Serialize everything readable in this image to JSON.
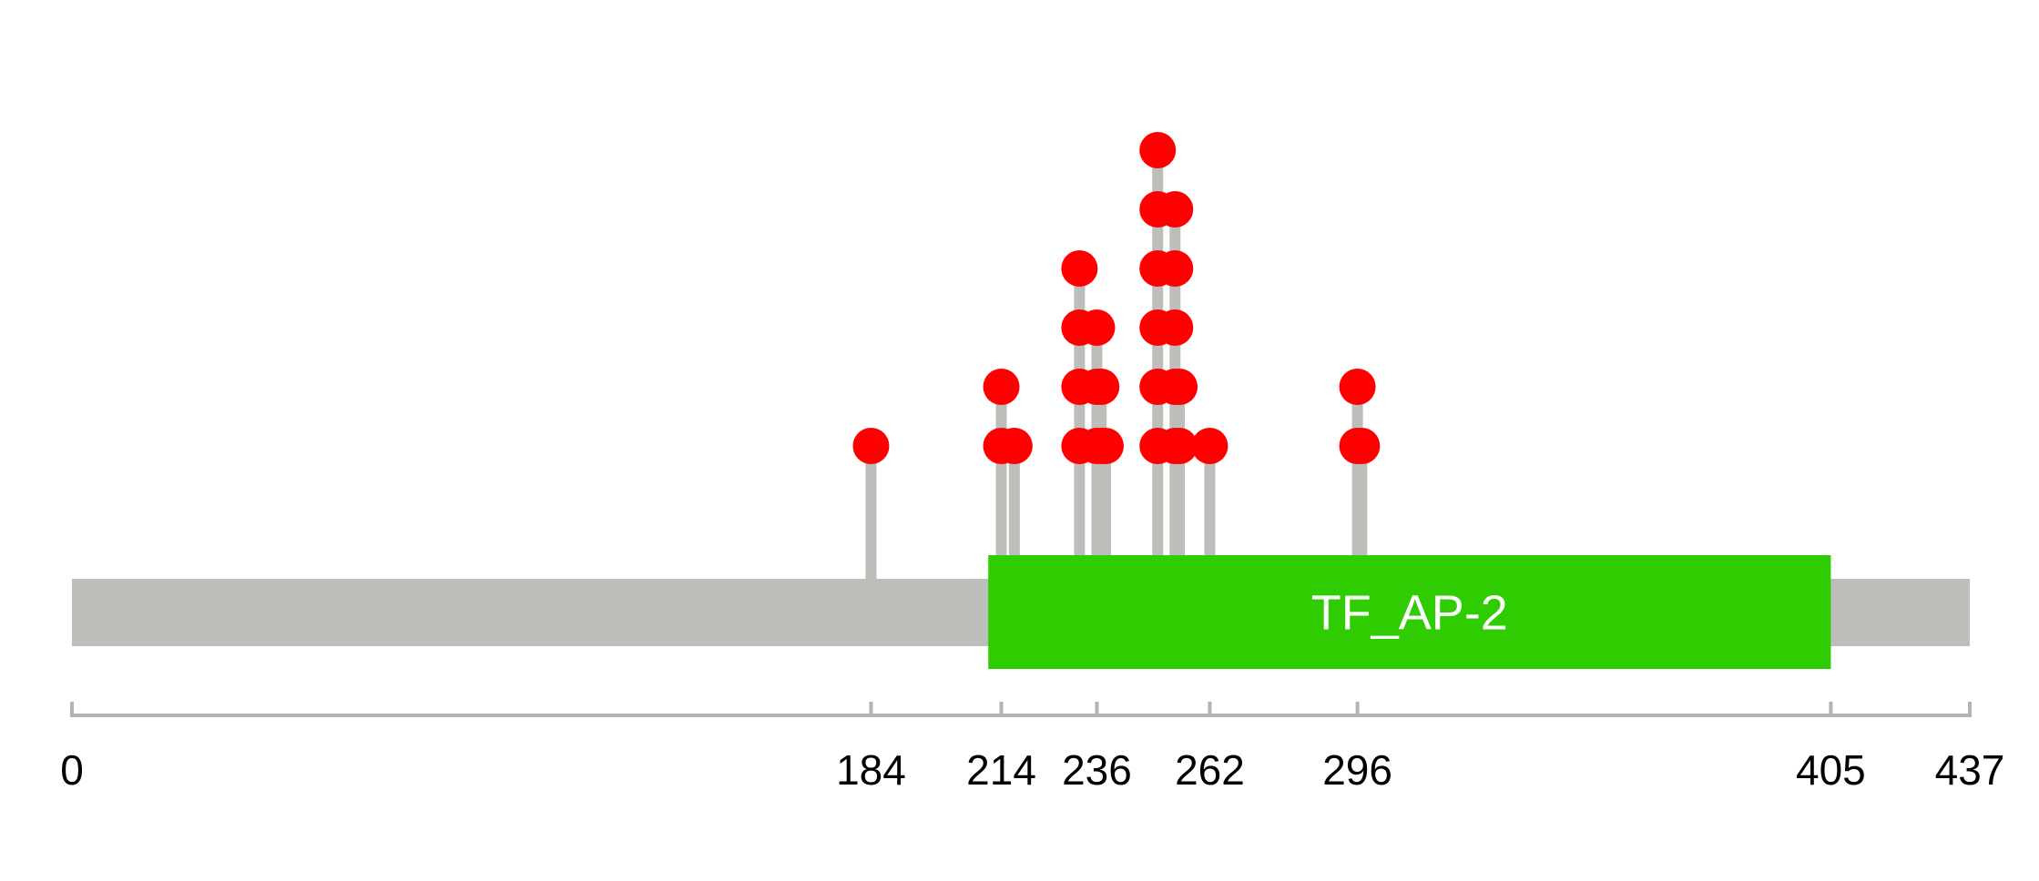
{
  "chart_data": {
    "type": "lollipop",
    "protein_length": 437,
    "axis": {
      "min": 0,
      "max": 437,
      "ticks": [
        0,
        184,
        214,
        236,
        262,
        296,
        405,
        437
      ]
    },
    "domains": [
      {
        "name": "TF_AP-2",
        "start": 211,
        "end": 405,
        "color": "#2ecc00"
      }
    ],
    "mutations": [
      {
        "position": 184,
        "count": 1
      },
      {
        "position": 214,
        "count": 2
      },
      {
        "position": 217,
        "count": 1
      },
      {
        "position": 232,
        "count": 4
      },
      {
        "position": 236,
        "count": 3
      },
      {
        "position": 237,
        "count": 2
      },
      {
        "position": 238,
        "count": 1
      },
      {
        "position": 250,
        "count": 6
      },
      {
        "position": 254,
        "count": 5
      },
      {
        "position": 255,
        "count": 2
      },
      {
        "position": 262,
        "count": 1
      },
      {
        "position": 296,
        "count": 2
      },
      {
        "position": 297,
        "count": 1
      }
    ],
    "colors": {
      "backbone": "#bdbdb9",
      "stem": "#bdbdb9",
      "dot": "#ff0000",
      "axis": "#b3b3b3"
    }
  }
}
